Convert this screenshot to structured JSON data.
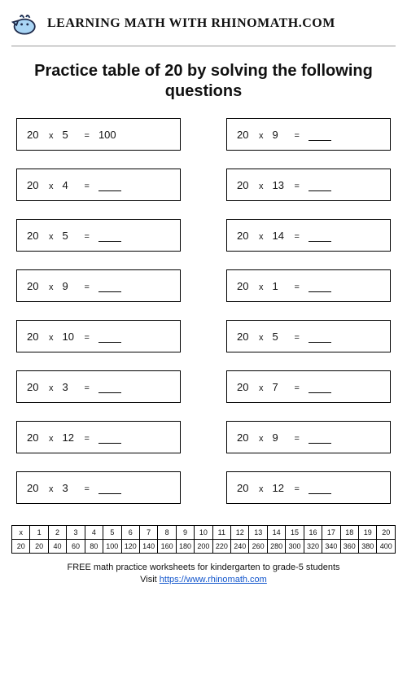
{
  "brand": "LEARNING MATH WITH RHINOMATH.COM",
  "title": "Practice table of 20 by solving the following questions",
  "questions": {
    "left": [
      {
        "a": "20",
        "op": "x",
        "b": "5",
        "eq": "=",
        "ans": "100"
      },
      {
        "a": "20",
        "op": "x",
        "b": "4",
        "eq": "=",
        "ans": ""
      },
      {
        "a": "20",
        "op": "x",
        "b": "5",
        "eq": "=",
        "ans": ""
      },
      {
        "a": "20",
        "op": "x",
        "b": "9",
        "eq": "=",
        "ans": ""
      },
      {
        "a": "20",
        "op": "x",
        "b": "10",
        "eq": "=",
        "ans": ""
      },
      {
        "a": "20",
        "op": "x",
        "b": "3",
        "eq": "=",
        "ans": ""
      },
      {
        "a": "20",
        "op": "x",
        "b": "12",
        "eq": "=",
        "ans": ""
      },
      {
        "a": "20",
        "op": "x",
        "b": "3",
        "eq": "=",
        "ans": ""
      }
    ],
    "right": [
      {
        "a": "20",
        "op": "x",
        "b": "9",
        "eq": "=",
        "ans": ""
      },
      {
        "a": "20",
        "op": "x",
        "b": "13",
        "eq": "=",
        "ans": ""
      },
      {
        "a": "20",
        "op": "x",
        "b": "14",
        "eq": "=",
        "ans": ""
      },
      {
        "a": "20",
        "op": "x",
        "b": "1",
        "eq": "=",
        "ans": ""
      },
      {
        "a": "20",
        "op": "x",
        "b": "5",
        "eq": "=",
        "ans": ""
      },
      {
        "a": "20",
        "op": "x",
        "b": "7",
        "eq": "=",
        "ans": ""
      },
      {
        "a": "20",
        "op": "x",
        "b": "9",
        "eq": "=",
        "ans": ""
      },
      {
        "a": "20",
        "op": "x",
        "b": "12",
        "eq": "=",
        "ans": ""
      }
    ]
  },
  "reftable": {
    "head_label": "x",
    "row_label": "20",
    "cols": [
      "1",
      "2",
      "3",
      "4",
      "5",
      "6",
      "7",
      "8",
      "9",
      "10",
      "11",
      "12",
      "13",
      "14",
      "15",
      "16",
      "17",
      "18",
      "19",
      "20"
    ],
    "values": [
      "20",
      "40",
      "60",
      "80",
      "100",
      "120",
      "140",
      "160",
      "180",
      "200",
      "220",
      "240",
      "260",
      "280",
      "300",
      "320",
      "340",
      "360",
      "380",
      "400"
    ]
  },
  "footer": {
    "line1": "FREE math practice worksheets for kindergarten to grade-5 students",
    "line2_prefix": "Visit ",
    "link_text": "https://www.rhinomath.com"
  },
  "colors": {
    "rhino_body": "#a9d5f5",
    "rhino_outline": "#1e2a4a"
  }
}
